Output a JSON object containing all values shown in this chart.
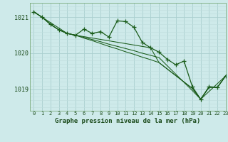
{
  "title": "Graphe pression niveau de la mer (hPa)",
  "background_color": "#ceeaea",
  "grid_color_major": "#aacfcf",
  "grid_color_minor": "#bedddd",
  "line_color": "#1a5c1a",
  "xlim": [
    -0.5,
    23
  ],
  "ylim": [
    1018.4,
    1021.4
  ],
  "yticks": [
    1019,
    1020,
    1021
  ],
  "xticks": [
    0,
    1,
    2,
    3,
    4,
    5,
    6,
    7,
    8,
    9,
    10,
    11,
    12,
    13,
    14,
    15,
    16,
    17,
    18,
    19,
    20,
    21,
    22,
    23
  ],
  "series": [
    {
      "x": [
        0,
        1,
        2,
        3,
        4,
        5,
        6,
        7,
        8,
        9,
        10,
        11,
        12,
        13,
        14,
        15,
        16,
        17,
        18,
        19,
        20,
        21,
        22,
        23
      ],
      "y": [
        1021.15,
        1021.0,
        1020.8,
        1020.65,
        1020.55,
        1020.5,
        1020.67,
        1020.55,
        1020.6,
        1020.45,
        1020.9,
        1020.88,
        1020.72,
        1020.3,
        1020.15,
        1020.03,
        1019.83,
        1019.68,
        1019.78,
        1019.07,
        1018.72,
        1019.07,
        1019.05,
        1019.37
      ],
      "has_markers": true
    },
    {
      "x": [
        0,
        1,
        2,
        3,
        4,
        5,
        6,
        7,
        8,
        9,
        10,
        11,
        12,
        13,
        14,
        15,
        16,
        17,
        18,
        19,
        20,
        21,
        22,
        23
      ],
      "y": [
        1021.15,
        1021.0,
        1020.8,
        1020.65,
        1020.55,
        1020.5,
        1020.42,
        1020.35,
        1020.27,
        1020.19,
        1020.12,
        1020.04,
        1019.97,
        1019.89,
        1019.82,
        1019.74,
        1019.56,
        1019.38,
        1019.2,
        1019.02,
        1018.72,
        1019.05,
        1019.05,
        1019.37
      ],
      "has_markers": false
    },
    {
      "x": [
        0,
        1,
        2,
        3,
        4,
        5,
        6,
        7,
        8,
        9,
        10,
        11,
        12,
        13,
        14,
        15,
        16,
        17,
        18,
        19,
        20,
        21,
        22,
        23
      ],
      "y": [
        1021.15,
        1021.0,
        1020.8,
        1020.65,
        1020.55,
        1020.5,
        1020.44,
        1020.38,
        1020.32,
        1020.25,
        1020.19,
        1020.13,
        1020.07,
        1020.0,
        1019.94,
        1019.88,
        1019.65,
        1019.42,
        1019.19,
        1018.96,
        1018.72,
        1019.05,
        1019.05,
        1019.37
      ],
      "has_markers": false
    },
    {
      "x": [
        0,
        1,
        4,
        5,
        14,
        15,
        19,
        20,
        23
      ],
      "y": [
        1021.15,
        1021.0,
        1020.55,
        1020.5,
        1020.15,
        1019.74,
        1019.02,
        1018.72,
        1019.37
      ],
      "has_markers": false
    }
  ]
}
